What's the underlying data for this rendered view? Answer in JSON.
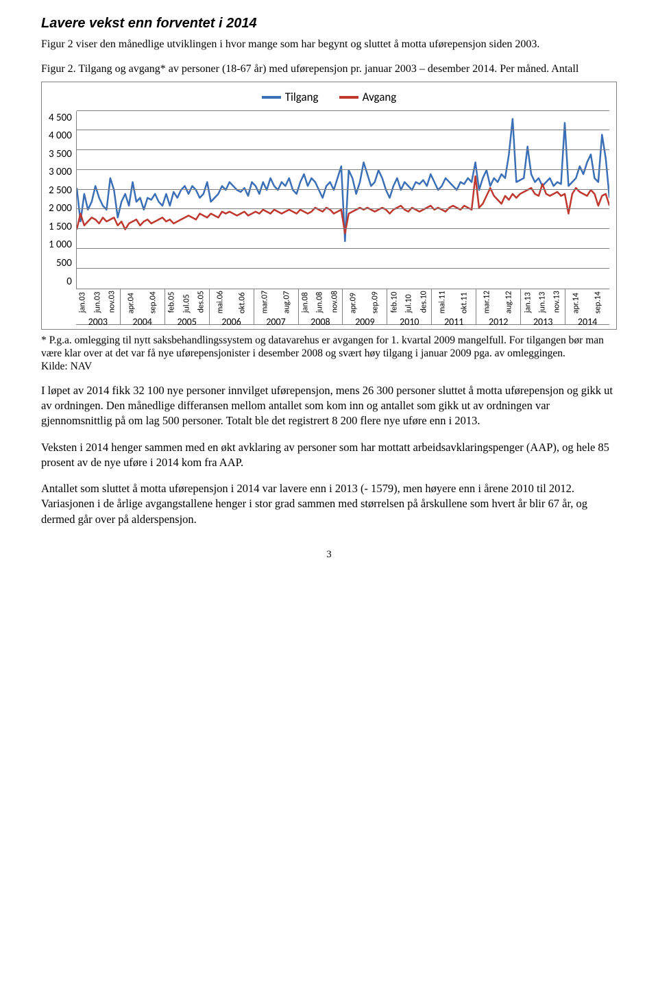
{
  "heading": "Lavere vekst enn forventet i 2014",
  "intro": "Figur 2 viser den månedlige utviklingen i hvor mange som har begynt og sluttet å motta uførepensjon siden 2003.",
  "figcaption": "Figur 2. Tilgang og avgang* av personer (18-67 år) med uførepensjon pr. januar 2003 – desember 2014. Per måned. Antall",
  "chart": {
    "type": "line",
    "legend": [
      {
        "label": "Tilgang",
        "color": "#3a6fb7"
      },
      {
        "label": "Avgang",
        "color": "#c0372e"
      }
    ],
    "ylim": [
      0,
      4500
    ],
    "ytick_step": 500,
    "yticks": [
      "4 500",
      "4 000",
      "3 500",
      "3 000",
      "2 500",
      "2 000",
      "1 500",
      "1 000",
      "500",
      "0"
    ],
    "grid_color": "#808080",
    "border_color": "#808080",
    "background_color": "#ffffff",
    "line_width": 2.5,
    "years": [
      {
        "year": "2003",
        "ticks": [
          "jan.03",
          "jun.03",
          "nov.03"
        ]
      },
      {
        "year": "2004",
        "ticks": [
          "apr.04",
          "sep.04"
        ]
      },
      {
        "year": "2005",
        "ticks": [
          "feb.05",
          "jul.05",
          "des.05"
        ]
      },
      {
        "year": "2006",
        "ticks": [
          "mai.06",
          "okt.06"
        ]
      },
      {
        "year": "2007",
        "ticks": [
          "mar.07",
          "aug.07"
        ]
      },
      {
        "year": "2008",
        "ticks": [
          "jan.08",
          "jun.08",
          "nov.08"
        ]
      },
      {
        "year": "2009",
        "ticks": [
          "apr.09",
          "sep.09"
        ]
      },
      {
        "year": "2010",
        "ticks": [
          "feb.10",
          "jul.10",
          "des.10"
        ]
      },
      {
        "year": "2011",
        "ticks": [
          "mai.11",
          "okt.11"
        ]
      },
      {
        "year": "2012",
        "ticks": [
          "mar.12",
          "aug.12"
        ]
      },
      {
        "year": "2013",
        "ticks": [
          "jan.13",
          "jun.13",
          "nov.13"
        ]
      },
      {
        "year": "2014",
        "ticks": [
          "apr.14",
          "sep.14"
        ]
      }
    ],
    "series": {
      "tilgang": [
        2550,
        1700,
        2400,
        2000,
        2200,
        2600,
        2300,
        2100,
        2000,
        2800,
        2500,
        1800,
        2200,
        2400,
        2100,
        2700,
        2200,
        2300,
        2000,
        2300,
        2250,
        2400,
        2200,
        2100,
        2400,
        2100,
        2450,
        2300,
        2500,
        2600,
        2400,
        2600,
        2500,
        2300,
        2400,
        2700,
        2200,
        2300,
        2400,
        2600,
        2500,
        2700,
        2600,
        2500,
        2450,
        2550,
        2350,
        2700,
        2600,
        2400,
        2700,
        2500,
        2800,
        2600,
        2500,
        2700,
        2600,
        2800,
        2500,
        2400,
        2700,
        2900,
        2600,
        2800,
        2700,
        2500,
        2300,
        2600,
        2700,
        2500,
        2800,
        3100,
        1200,
        3000,
        2800,
        2400,
        2700,
        3200,
        2900,
        2600,
        2700,
        3000,
        2800,
        2500,
        2300,
        2600,
        2800,
        2500,
        2700,
        2600,
        2500,
        2700,
        2650,
        2750,
        2600,
        2900,
        2700,
        2500,
        2600,
        2800,
        2700,
        2600,
        2500,
        2700,
        2650,
        2800,
        2700,
        3200,
        2500,
        2800,
        3000,
        2600,
        2800,
        2700,
        2900,
        2800,
        3400,
        4300,
        2700,
        2750,
        2800,
        3600,
        2900,
        2700,
        2800,
        2600,
        2700,
        2800,
        2600,
        2700,
        2650,
        4200,
        2600,
        2700,
        2800,
        3100,
        2900,
        3200,
        3400,
        2800,
        2700,
        3900,
        3300,
        2300
      ],
      "avgang": [
        1500,
        1900,
        1600,
        1700,
        1800,
        1750,
        1650,
        1800,
        1700,
        1750,
        1800,
        1600,
        1700,
        1500,
        1650,
        1700,
        1750,
        1600,
        1700,
        1750,
        1650,
        1700,
        1750,
        1800,
        1700,
        1750,
        1650,
        1700,
        1750,
        1800,
        1850,
        1800,
        1750,
        1900,
        1850,
        1800,
        1900,
        1850,
        1800,
        1950,
        1900,
        1950,
        1900,
        1850,
        1900,
        1950,
        1850,
        1900,
        1950,
        1900,
        2000,
        1950,
        1900,
        2000,
        1950,
        1900,
        1950,
        2000,
        1950,
        1900,
        2000,
        1950,
        1900,
        1950,
        2050,
        2000,
        1950,
        2050,
        2000,
        1900,
        1950,
        2000,
        1400,
        1900,
        1950,
        2000,
        2050,
        2000,
        2050,
        2000,
        1950,
        2000,
        2050,
        2000,
        1900,
        2000,
        2050,
        2100,
        2000,
        1950,
        2050,
        2000,
        1950,
        2000,
        2050,
        2100,
        2000,
        2050,
        2000,
        1950,
        2050,
        2100,
        2050,
        2000,
        2100,
        2050,
        2000,
        2850,
        2050,
        2150,
        2350,
        2550,
        2350,
        2250,
        2150,
        2350,
        2250,
        2400,
        2300,
        2400,
        2450,
        2500,
        2550,
        2400,
        2350,
        2650,
        2400,
        2350,
        2400,
        2450,
        2350,
        2400,
        1900,
        2400,
        2550,
        2450,
        2400,
        2350,
        2500,
        2400,
        2100,
        2350,
        2400,
        2100
      ]
    }
  },
  "footnote": "* P.g.a. omlegging til nytt saksbehandlingssystem og datavarehus er avgangen for 1. kvartal 2009 mangelfull. For tilgangen bør man være klar over at det var få nye uførepensjonister i desember 2008 og svært høy tilgang i januar 2009 pga. av omleggingen.\nKilde: NAV",
  "para1": "I løpet av 2014 fikk 32 100 nye personer innvilget uførepensjon, mens 26 300 personer sluttet å motta uførepensjon og gikk ut av ordningen. Den månedlige differansen mellom antallet som kom inn og antallet som gikk ut av ordningen var gjennomsnittlig på om lag 500 personer. Totalt ble det registrert 8 200 flere nye uføre enn i 2013.",
  "para2": "Veksten i 2014 henger sammen med en økt avklaring av personer som har mottatt arbeidsavklaringspenger (AAP), og hele 85 prosent av de nye uføre i 2014 kom fra AAP.",
  "para3": "Antallet som sluttet å motta uførepensjon i 2014 var lavere enn i 2013 (- 1579), men høyere enn i årene 2010 til 2012. Variasjonen i de årlige avgangstallene henger i stor grad sammen med størrelsen på årskullene som hvert år blir 67 år, og dermed går over på alderspensjon.",
  "page_number": "3"
}
